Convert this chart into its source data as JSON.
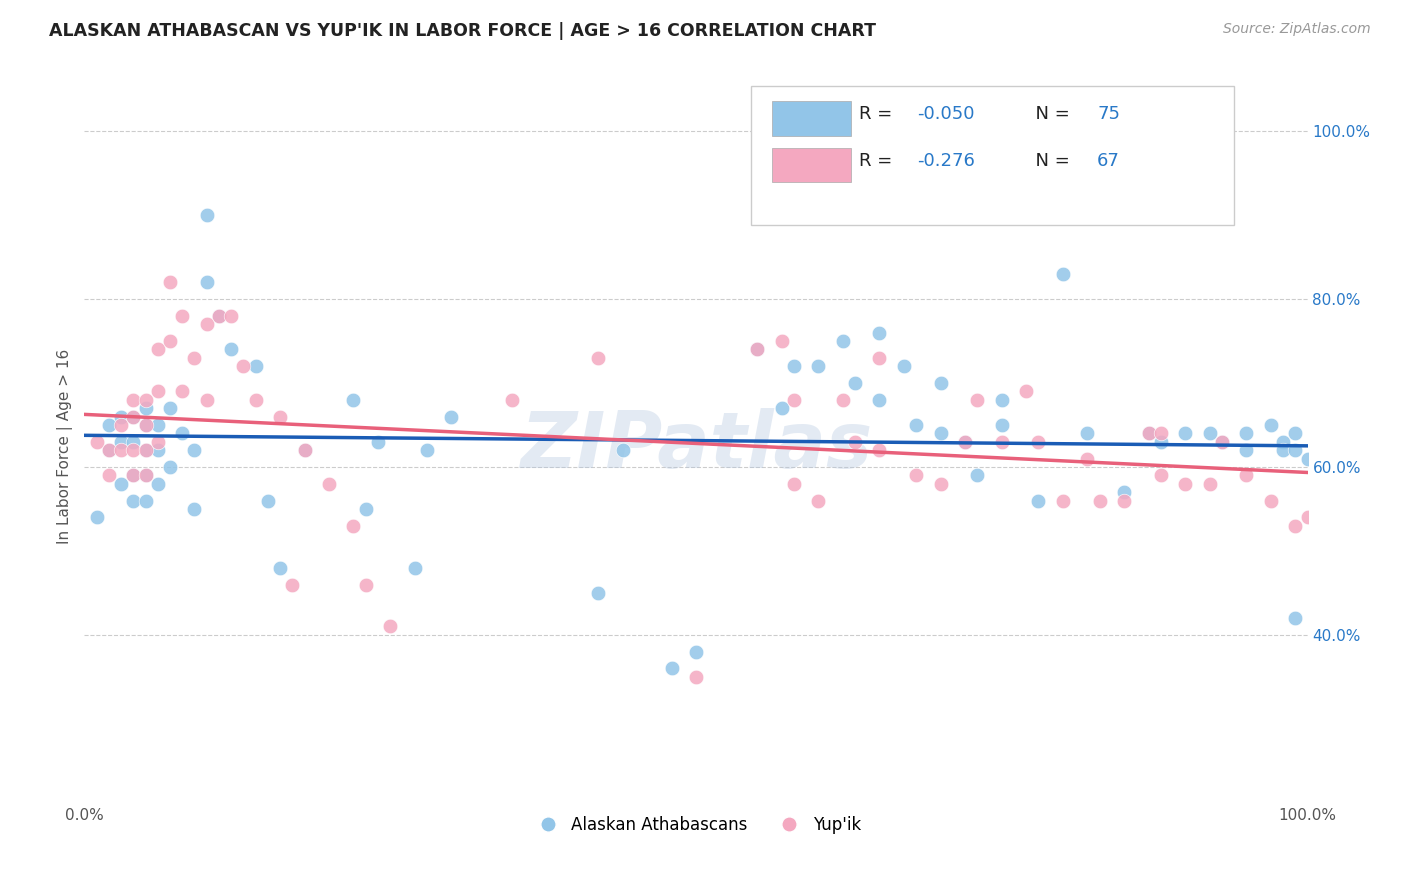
{
  "title": "ALASKAN ATHABASCAN VS YUP'IK IN LABOR FORCE | AGE > 16 CORRELATION CHART",
  "source": "Source: ZipAtlas.com",
  "ylabel": "In Labor Force | Age > 16",
  "xlim": [
    0.0,
    1.0
  ],
  "ylim": [
    0.2,
    1.05
  ],
  "yticks_right": [
    1.0,
    0.8,
    0.6,
    0.4
  ],
  "ytick_labels_right": [
    "100.0%",
    "80.0%",
    "60.0%",
    "40.0%"
  ],
  "color_blue": "#92C5E8",
  "color_pink": "#F4A8C0",
  "line_color_blue": "#1A5CB5",
  "line_color_pink": "#E8607A",
  "watermark": "ZIPatlas",
  "R_blue": -0.05,
  "N_blue": 75,
  "R_pink": -0.276,
  "N_pink": 67,
  "blue_x": [
    0.01,
    0.02,
    0.02,
    0.03,
    0.03,
    0.03,
    0.04,
    0.04,
    0.04,
    0.04,
    0.05,
    0.05,
    0.05,
    0.05,
    0.05,
    0.06,
    0.06,
    0.06,
    0.07,
    0.07,
    0.08,
    0.09,
    0.09,
    0.1,
    0.1,
    0.11,
    0.12,
    0.14,
    0.15,
    0.16,
    0.18,
    0.22,
    0.23,
    0.24,
    0.27,
    0.28,
    0.3,
    0.42,
    0.44,
    0.48,
    0.5,
    0.55,
    0.57,
    0.58,
    0.6,
    0.62,
    0.63,
    0.65,
    0.65,
    0.67,
    0.68,
    0.7,
    0.7,
    0.72,
    0.73,
    0.75,
    0.75,
    0.78,
    0.8,
    0.82,
    0.85,
    0.87,
    0.88,
    0.9,
    0.92,
    0.93,
    0.95,
    0.95,
    0.97,
    0.98,
    0.98,
    0.99,
    0.99,
    0.99,
    1.0
  ],
  "blue_y": [
    0.54,
    0.65,
    0.62,
    0.66,
    0.63,
    0.58,
    0.66,
    0.63,
    0.59,
    0.56,
    0.67,
    0.65,
    0.62,
    0.59,
    0.56,
    0.65,
    0.62,
    0.58,
    0.67,
    0.6,
    0.64,
    0.62,
    0.55,
    0.9,
    0.82,
    0.78,
    0.74,
    0.72,
    0.56,
    0.48,
    0.62,
    0.68,
    0.55,
    0.63,
    0.48,
    0.62,
    0.66,
    0.45,
    0.62,
    0.36,
    0.38,
    0.74,
    0.67,
    0.72,
    0.72,
    0.75,
    0.7,
    0.76,
    0.68,
    0.72,
    0.65,
    0.7,
    0.64,
    0.63,
    0.59,
    0.68,
    0.65,
    0.56,
    0.83,
    0.64,
    0.57,
    0.64,
    0.63,
    0.64,
    0.64,
    0.63,
    0.64,
    0.62,
    0.65,
    0.63,
    0.62,
    0.42,
    0.64,
    0.62,
    0.61
  ],
  "pink_x": [
    0.01,
    0.02,
    0.02,
    0.03,
    0.03,
    0.04,
    0.04,
    0.04,
    0.04,
    0.05,
    0.05,
    0.05,
    0.05,
    0.06,
    0.06,
    0.06,
    0.07,
    0.07,
    0.08,
    0.08,
    0.09,
    0.1,
    0.1,
    0.11,
    0.12,
    0.13,
    0.14,
    0.16,
    0.17,
    0.18,
    0.2,
    0.22,
    0.23,
    0.25,
    0.35,
    0.42,
    0.5,
    0.55,
    0.57,
    0.58,
    0.58,
    0.6,
    0.62,
    0.63,
    0.65,
    0.65,
    0.68,
    0.7,
    0.72,
    0.73,
    0.75,
    0.77,
    0.78,
    0.8,
    0.82,
    0.83,
    0.85,
    0.87,
    0.88,
    0.88,
    0.9,
    0.92,
    0.93,
    0.95,
    0.97,
    0.99,
    1.0
  ],
  "pink_y": [
    0.63,
    0.62,
    0.59,
    0.65,
    0.62,
    0.68,
    0.66,
    0.62,
    0.59,
    0.68,
    0.65,
    0.62,
    0.59,
    0.74,
    0.69,
    0.63,
    0.82,
    0.75,
    0.78,
    0.69,
    0.73,
    0.77,
    0.68,
    0.78,
    0.78,
    0.72,
    0.68,
    0.66,
    0.46,
    0.62,
    0.58,
    0.53,
    0.46,
    0.41,
    0.68,
    0.73,
    0.35,
    0.74,
    0.75,
    0.68,
    0.58,
    0.56,
    0.68,
    0.63,
    0.62,
    0.73,
    0.59,
    0.58,
    0.63,
    0.68,
    0.63,
    0.69,
    0.63,
    0.56,
    0.61,
    0.56,
    0.56,
    0.64,
    0.64,
    0.59,
    0.58,
    0.58,
    0.63,
    0.59,
    0.56,
    0.53,
    0.54
  ]
}
